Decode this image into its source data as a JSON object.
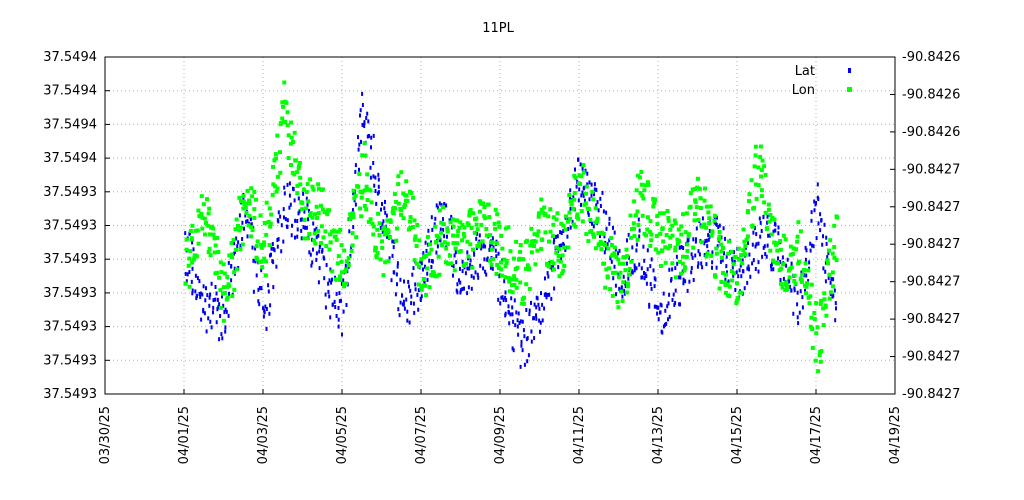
{
  "chart_data": {
    "type": "scatter",
    "title": "11PL",
    "x_tick_labels": [
      "03/30/25",
      "04/01/25",
      "04/03/25",
      "04/05/25",
      "04/07/25",
      "04/09/25",
      "04/11/25",
      "04/13/25",
      "04/15/25",
      "04/17/25",
      "04/19/25"
    ],
    "y_left_tick_labels": [
      "37.5493",
      "37.5493",
      "37.5493",
      "37.5493",
      "37.5493",
      "37.5493",
      "37.5493",
      "37.5494",
      "37.5494",
      "37.5494",
      "37.5494"
    ],
    "y_right_tick_labels": [
      "-90.8427",
      "-90.8427",
      "-90.8427",
      "-90.8427",
      "-90.8427",
      "-90.8427",
      "-90.8427",
      "-90.8426",
      "-90.8426",
      "-90.8426"
    ],
    "xlim": [
      "2025-03-30",
      "2025-04-19"
    ],
    "grid": true,
    "legend_position": "top-right",
    "series": [
      {
        "name": "Lat",
        "axis": "left",
        "color": "#0000ee",
        "x": [
          "2025-04-01T00:00",
          "2025-04-01T12:00",
          "2025-04-02T00:00",
          "2025-04-02T12:00",
          "2025-04-03T00:00",
          "2025-04-03T12:00",
          "2025-04-04T00:00",
          "2025-04-04T12:00",
          "2025-04-05T00:00",
          "2025-04-05T12:00",
          "2025-04-06T00:00",
          "2025-04-06T12:00",
          "2025-04-07T00:00",
          "2025-04-07T12:00",
          "2025-04-08T00:00",
          "2025-04-08T12:00",
          "2025-04-09T00:00",
          "2025-04-09T12:00",
          "2025-04-10T00:00",
          "2025-04-10T12:00",
          "2025-04-11T00:00",
          "2025-04-11T12:00",
          "2025-04-12T00:00",
          "2025-04-12T12:00",
          "2025-04-13T00:00",
          "2025-04-13T12:00",
          "2025-04-14T00:00",
          "2025-04-14T12:00",
          "2025-04-15T00:00",
          "2025-04-15T12:00",
          "2025-04-16T00:00",
          "2025-04-16T12:00",
          "2025-04-17T00:00",
          "2025-04-17T12:00"
        ],
        "y": [
          37.54931,
          37.54929,
          37.54929,
          37.54932,
          37.54929,
          37.54932,
          37.54932,
          37.5493,
          37.54929,
          37.54935,
          37.54932,
          37.54929,
          37.5493,
          37.54932,
          37.5493,
          37.54931,
          37.5493,
          37.54928,
          37.54929,
          37.54931,
          37.54933,
          37.54932,
          37.5493,
          37.54931,
          37.54929,
          37.5493,
          37.54931,
          37.54931,
          37.5493,
          37.54931,
          37.54931,
          37.54929,
          37.54932,
          37.54929
        ]
      },
      {
        "name": "Lon",
        "axis": "right",
        "color": "#00ff00",
        "x": [
          "2025-04-01T00:00",
          "2025-04-01T12:00",
          "2025-04-02T00:00",
          "2025-04-02T12:00",
          "2025-04-03T00:00",
          "2025-04-03T12:00",
          "2025-04-04T00:00",
          "2025-04-04T12:00",
          "2025-04-05T00:00",
          "2025-04-05T12:00",
          "2025-04-06T00:00",
          "2025-04-06T12:00",
          "2025-04-07T00:00",
          "2025-04-07T12:00",
          "2025-04-08T00:00",
          "2025-04-08T12:00",
          "2025-04-09T00:00",
          "2025-04-09T12:00",
          "2025-04-10T00:00",
          "2025-04-10T12:00",
          "2025-04-11T00:00",
          "2025-04-11T12:00",
          "2025-04-12T00:00",
          "2025-04-12T12:00",
          "2025-04-13T00:00",
          "2025-04-13T12:00",
          "2025-04-14T00:00",
          "2025-04-14T12:00",
          "2025-04-15T00:00",
          "2025-04-15T12:00",
          "2025-04-16T00:00",
          "2025-04-16T12:00",
          "2025-04-17T00:00",
          "2025-04-17T12:00"
        ],
        "y": [
          -90.8427,
          -90.842675,
          -90.842715,
          -90.842665,
          -90.84269,
          -90.842625,
          -90.84267,
          -90.842675,
          -90.8427,
          -90.842655,
          -90.842695,
          -90.84266,
          -90.8427,
          -90.842685,
          -90.84269,
          -90.84268,
          -90.84269,
          -90.842705,
          -90.84268,
          -90.84269,
          -90.84266,
          -90.84269,
          -90.84271,
          -90.842665,
          -90.842685,
          -90.84269,
          -90.84267,
          -90.842695,
          -90.842705,
          -90.84265,
          -90.8427,
          -90.84269,
          -90.842735,
          -90.84268
        ]
      }
    ]
  }
}
